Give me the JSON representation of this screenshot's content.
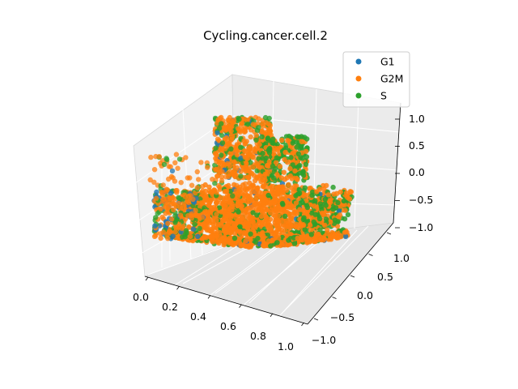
{
  "chart_data": {
    "type": "scatter",
    "projection": "3d",
    "title": "Cycling.cancer.cell.2",
    "xlabel": "",
    "ylabel": "",
    "zlabel": "",
    "x_ticks": [
      "0.0",
      "0.2",
      "0.4",
      "0.6",
      "0.8",
      "1.0"
    ],
    "y_ticks": [
      "−1.0",
      "−0.5",
      "0.0",
      "0.5",
      "1.0"
    ],
    "z_ticks": [
      "−1.0",
      "−0.5",
      "0.0",
      "0.5",
      "1.0"
    ],
    "xlim": [
      0,
      1
    ],
    "ylim": [
      -1,
      1
    ],
    "zlim": [
      -1,
      1
    ],
    "grid": true,
    "legend_position": "top-right",
    "series": [
      {
        "name": "G1",
        "color": "#1f77b4",
        "share": 0.08
      },
      {
        "name": "G2M",
        "color": "#ff7f0e",
        "share": 0.62
      },
      {
        "name": "S",
        "color": "#2ca02c",
        "share": 0.3
      }
    ]
  }
}
